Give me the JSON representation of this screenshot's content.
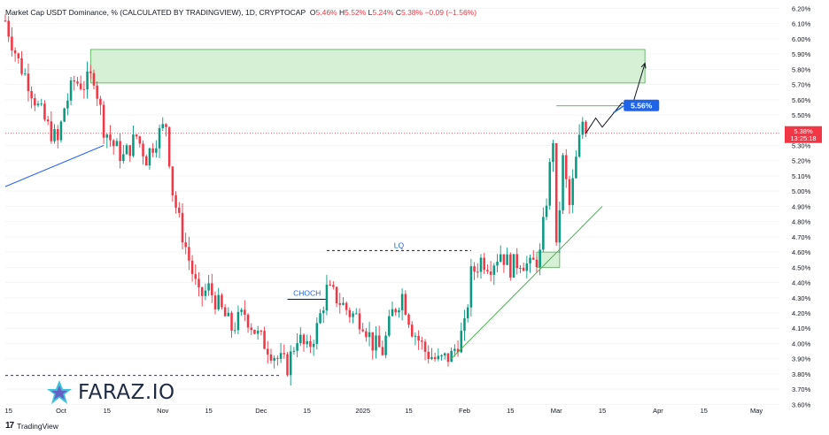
{
  "header": {
    "title": "Market Cap USDT Dominance, % (CALCULATED BY TRADINGVIEW), 1D, CRYPTOCAP",
    "o_label": "O",
    "o_value": "5.46%",
    "h_label": "H",
    "h_value": "5.52%",
    "l_label": "L",
    "l_value": "5.24%",
    "c_label": "C",
    "c_value": "5.38%",
    "change": "−0.09 (−1.56%)"
  },
  "price_label": {
    "value": "5.38%",
    "countdown": "13:25:18"
  },
  "target_label": "5.56%",
  "annotations": {
    "lq": "LQ",
    "choch": "CHOCH"
  },
  "watermark": "FARAZ.IO",
  "footer": "TradingView",
  "colors": {
    "up": "#089981",
    "down": "#f23645",
    "zone_fill": "#c8ebc8",
    "zone_stroke": "#4caf50",
    "trendline_blue": "#2962ff",
    "trendline_green": "#4caf50",
    "label_bg": "#1e63e8",
    "price_line": "#f23645"
  },
  "chart_data": {
    "type": "candlestick",
    "title": "Market Cap USDT Dominance, % (CALCULATED BY TRADINGVIEW), 1D, CRYPTOCAP",
    "y_axis": {
      "min": 3.55,
      "max": 6.22,
      "ticks": [
        "6.20%",
        "6.10%",
        "6.00%",
        "5.90%",
        "5.80%",
        "5.70%",
        "5.60%",
        "5.50%",
        "5.40%",
        "5.30%",
        "5.20%",
        "5.10%",
        "5.00%",
        "4.90%",
        "4.80%",
        "4.70%",
        "4.60%",
        "4.50%",
        "4.40%",
        "4.30%",
        "4.20%",
        "4.10%",
        "4.00%",
        "3.90%",
        "3.80%",
        "3.70%",
        "3.60%"
      ]
    },
    "x_axis": {
      "start": "2024-09-14",
      "end": "2025-05-08",
      "ticks": [
        {
          "date": "2024-09-15",
          "label": "15"
        },
        {
          "date": "2024-10-01",
          "label": "Oct"
        },
        {
          "date": "2024-10-15",
          "label": "15"
        },
        {
          "date": "2024-11-01",
          "label": "Nov"
        },
        {
          "date": "2024-11-15",
          "label": "15"
        },
        {
          "date": "2024-12-01",
          "label": "Dec"
        },
        {
          "date": "2024-12-15",
          "label": "15"
        },
        {
          "date": "2025-01-01",
          "label": "2025"
        },
        {
          "date": "2025-01-15",
          "label": "15"
        },
        {
          "date": "2025-02-01",
          "label": "Feb"
        },
        {
          "date": "2025-02-15",
          "label": "15"
        },
        {
          "date": "2025-03-01",
          "label": "Mar"
        },
        {
          "date": "2025-03-15",
          "label": "15"
        },
        {
          "date": "2025-04-01",
          "label": "Apr"
        },
        {
          "date": "2025-04-15",
          "label": "15"
        },
        {
          "date": "2025-05-01",
          "label": "May"
        }
      ]
    },
    "closes": [
      {
        "date": "2024-09-14",
        "close": 6.12
      },
      {
        "date": "2024-09-15",
        "close": 6.05
      },
      {
        "date": "2024-09-18",
        "close": 5.85
      },
      {
        "date": "2024-09-21",
        "close": 5.72
      },
      {
        "date": "2024-09-24",
        "close": 5.55
      },
      {
        "date": "2024-09-27",
        "close": 5.42
      },
      {
        "date": "2024-09-30",
        "close": 5.32
      },
      {
        "date": "2024-10-02",
        "close": 5.55
      },
      {
        "date": "2024-10-05",
        "close": 5.72
      },
      {
        "date": "2024-10-08",
        "close": 5.7
      },
      {
        "date": "2024-10-11",
        "close": 5.76
      },
      {
        "date": "2024-10-14",
        "close": 5.42
      },
      {
        "date": "2024-10-17",
        "close": 5.3
      },
      {
        "date": "2024-10-20",
        "close": 5.22
      },
      {
        "date": "2024-10-24",
        "close": 5.36
      },
      {
        "date": "2024-10-27",
        "close": 5.22
      },
      {
        "date": "2024-10-30",
        "close": 5.35
      },
      {
        "date": "2024-11-02",
        "close": 5.44
      },
      {
        "date": "2024-11-04",
        "close": 5.0
      },
      {
        "date": "2024-11-06",
        "close": 4.8
      },
      {
        "date": "2024-11-09",
        "close": 4.55
      },
      {
        "date": "2024-11-12",
        "close": 4.3
      },
      {
        "date": "2024-11-15",
        "close": 4.36
      },
      {
        "date": "2024-11-18",
        "close": 4.25
      },
      {
        "date": "2024-11-22",
        "close": 4.1
      },
      {
        "date": "2024-11-26",
        "close": 4.2
      },
      {
        "date": "2024-11-30",
        "close": 4.05
      },
      {
        "date": "2024-12-03",
        "close": 3.98
      },
      {
        "date": "2024-12-06",
        "close": 3.9
      },
      {
        "date": "2024-12-09",
        "close": 3.85
      },
      {
        "date": "2024-12-12",
        "close": 4.05
      },
      {
        "date": "2024-12-15",
        "close": 3.95
      },
      {
        "date": "2024-12-18",
        "close": 4.1
      },
      {
        "date": "2024-12-21",
        "close": 4.35
      },
      {
        "date": "2024-12-24",
        "close": 4.3
      },
      {
        "date": "2024-12-28",
        "close": 4.2
      },
      {
        "date": "2025-01-01",
        "close": 4.15
      },
      {
        "date": "2025-01-04",
        "close": 4.0
      },
      {
        "date": "2025-01-07",
        "close": 3.95
      },
      {
        "date": "2025-01-10",
        "close": 4.2
      },
      {
        "date": "2025-01-13",
        "close": 4.32
      },
      {
        "date": "2025-01-16",
        "close": 4.1
      },
      {
        "date": "2025-01-20",
        "close": 3.95
      },
      {
        "date": "2025-01-24",
        "close": 3.88
      },
      {
        "date": "2025-01-28",
        "close": 3.92
      },
      {
        "date": "2025-02-01",
        "close": 4.1
      },
      {
        "date": "2025-02-03",
        "close": 4.45
      },
      {
        "date": "2025-02-06",
        "close": 4.55
      },
      {
        "date": "2025-02-09",
        "close": 4.52
      },
      {
        "date": "2025-02-12",
        "close": 4.6
      },
      {
        "date": "2025-02-15",
        "close": 4.5
      },
      {
        "date": "2025-02-18",
        "close": 4.55
      },
      {
        "date": "2025-02-21",
        "close": 4.5
      },
      {
        "date": "2025-02-24",
        "close": 4.58
      },
      {
        "date": "2025-02-26",
        "close": 4.95
      },
      {
        "date": "2025-02-28",
        "close": 5.35
      },
      {
        "date": "2025-03-01",
        "close": 4.6
      },
      {
        "date": "2025-03-03",
        "close": 5.2
      },
      {
        "date": "2025-03-05",
        "close": 4.9
      },
      {
        "date": "2025-03-07",
        "close": 5.2
      },
      {
        "date": "2025-03-09",
        "close": 5.46
      },
      {
        "date": "2025-03-10",
        "close": 5.38
      }
    ],
    "zones": [
      {
        "from": "2024-10-10",
        "to": "2025-03-28",
        "top": 5.93,
        "bottom": 5.71
      },
      {
        "from": "2025-02-23",
        "to": "2025-03-02",
        "top": 4.6,
        "bottom": 4.5
      }
    ],
    "levels": [
      {
        "label": "LQ",
        "value": 4.61,
        "from": "2024-12-21",
        "to": "2025-02-03"
      },
      {
        "label": "CHOCH",
        "value": 4.29,
        "from": "2024-12-09",
        "to": "2024-12-21"
      },
      {
        "label": "",
        "value": 3.79,
        "from": "2024-09-14",
        "to": "2024-12-07"
      },
      {
        "label": "5.56%",
        "value": 5.56,
        "from": "2025-03-01",
        "to": "2025-03-21"
      },
      {
        "label": "5.38%",
        "value": 5.38,
        "from": "2024-09-14",
        "to": "2025-05-08"
      }
    ],
    "trendlines": [
      {
        "from": {
          "date": "2024-09-14",
          "value": 5.03
        },
        "to": {
          "date": "2024-10-14",
          "value": 5.3
        }
      },
      {
        "from": {
          "date": "2025-01-28",
          "value": 3.9
        },
        "to": {
          "date": "2025-03-15",
          "value": 4.9
        }
      }
    ],
    "projection": [
      {
        "date": "2025-03-10",
        "value": 5.38
      },
      {
        "date": "2025-03-13",
        "value": 5.48
      },
      {
        "date": "2025-03-15",
        "value": 5.42
      },
      {
        "date": "2025-03-21",
        "value": 5.58
      },
      {
        "date": "2025-03-24",
        "value": 5.55
      },
      {
        "date": "2025-03-28",
        "value": 5.84
      }
    ]
  }
}
